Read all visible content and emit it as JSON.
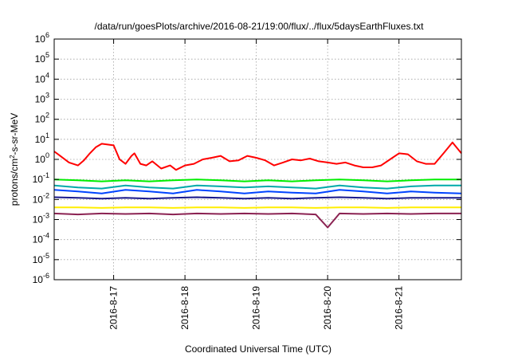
{
  "chart_data": {
    "type": "line",
    "title": "/data/run/goesPlots/archive/2016-08-21/19:00/flux/../flux/5daysEarthFluxes.txt",
    "xlabel": "Coordinated Universal Time (UTC)",
    "ylabel": {
      "before": "protons/cm",
      "superscript": "2",
      "after": "-s-sr-MeV"
    },
    "yscale": "log",
    "ylim": [
      1e-06,
      1000000.0
    ],
    "yticks": [
      {
        "value": 1e-06,
        "base": "10",
        "exp": "-6"
      },
      {
        "value": 1e-05,
        "base": "10",
        "exp": "-5"
      },
      {
        "value": 0.0001,
        "base": "10",
        "exp": "-4"
      },
      {
        "value": 0.001,
        "base": "10",
        "exp": "-3"
      },
      {
        "value": 0.01,
        "base": "10",
        "exp": "-2"
      },
      {
        "value": 0.1,
        "base": "10",
        "exp": "-1"
      },
      {
        "value": 1,
        "base": "10",
        "exp": "0"
      },
      {
        "value": 10,
        "base": "10",
        "exp": "1"
      },
      {
        "value": 100,
        "base": "10",
        "exp": "2"
      },
      {
        "value": 1000,
        "base": "10",
        "exp": "3"
      },
      {
        "value": 10000,
        "base": "10",
        "exp": "4"
      },
      {
        "value": 100000,
        "base": "10",
        "exp": "5"
      },
      {
        "value": 1000000,
        "base": "10",
        "exp": "6"
      }
    ],
    "xlim": [
      "2016-08-16 04:00",
      "2016-08-21 21:00"
    ],
    "xticks": [
      {
        "value": "2016-08-17 00:00",
        "label": "2016-8-17"
      },
      {
        "value": "2016-08-18 00:00",
        "label": "2016-8-18"
      },
      {
        "value": "2016-08-19 00:00",
        "label": "2016-8-19"
      },
      {
        "value": "2016-08-20 00:00",
        "label": "2016-8-20"
      },
      {
        "value": "2016-08-21 00:00",
        "label": "2016-8-21"
      }
    ],
    "grid": true,
    "legend": "none",
    "series": [
      {
        "color": "#ff0000",
        "x": [
          "2016-08-16 04:00",
          "2016-08-16 06:00",
          "2016-08-16 09:00",
          "2016-08-16 12:00",
          "2016-08-16 14:00",
          "2016-08-16 16:00",
          "2016-08-16 18:00",
          "2016-08-16 20:00",
          "2016-08-16 22:00",
          "2016-08-17 00:00",
          "2016-08-17 02:00",
          "2016-08-17 04:00",
          "2016-08-17 06:00",
          "2016-08-17 07:00",
          "2016-08-17 09:00",
          "2016-08-17 11:00",
          "2016-08-17 13:00",
          "2016-08-17 16:00",
          "2016-08-17 19:00",
          "2016-08-17 21:00",
          "2016-08-18 00:00",
          "2016-08-18 03:00",
          "2016-08-18 06:00",
          "2016-08-18 09:00",
          "2016-08-18 12:00",
          "2016-08-18 15:00",
          "2016-08-18 18:00",
          "2016-08-18 21:00",
          "2016-08-19 00:00",
          "2016-08-19 03:00",
          "2016-08-19 06:00",
          "2016-08-19 09:00",
          "2016-08-19 12:00",
          "2016-08-19 15:00",
          "2016-08-19 18:00",
          "2016-08-19 21:00",
          "2016-08-20 00:00",
          "2016-08-20 03:00",
          "2016-08-20 06:00",
          "2016-08-20 09:00",
          "2016-08-20 12:00",
          "2016-08-20 15:00",
          "2016-08-20 18:00",
          "2016-08-20 21:00",
          "2016-08-21 00:00",
          "2016-08-21 03:00",
          "2016-08-21 06:00",
          "2016-08-21 09:00",
          "2016-08-21 12:00",
          "2016-08-21 15:00",
          "2016-08-21 18:00",
          "2016-08-21 21:00"
        ],
        "y": [
          2.5,
          1.5,
          0.7,
          0.5,
          0.9,
          2.0,
          4.0,
          6.0,
          5.5,
          5.0,
          1.0,
          0.6,
          1.5,
          2.0,
          0.6,
          0.5,
          0.8,
          0.35,
          0.5,
          0.3,
          0.5,
          0.6,
          1.0,
          1.2,
          1.5,
          0.8,
          0.9,
          1.5,
          1.2,
          0.9,
          0.5,
          0.7,
          1.0,
          0.9,
          1.1,
          0.8,
          0.7,
          0.6,
          0.7,
          0.5,
          0.4,
          0.4,
          0.5,
          1.0,
          2.0,
          1.8,
          0.8,
          0.6,
          0.6,
          2.0,
          7.0,
          2.0
        ]
      },
      {
        "color": "#00ee00",
        "x": [
          "2016-08-16 04:00",
          "2016-08-16 12:00",
          "2016-08-16 20:00",
          "2016-08-17 04:00",
          "2016-08-17 12:00",
          "2016-08-17 20:00",
          "2016-08-18 04:00",
          "2016-08-18 12:00",
          "2016-08-18 20:00",
          "2016-08-19 04:00",
          "2016-08-19 12:00",
          "2016-08-19 20:00",
          "2016-08-20 04:00",
          "2016-08-20 12:00",
          "2016-08-20 20:00",
          "2016-08-21 04:00",
          "2016-08-21 12:00",
          "2016-08-21 21:00"
        ],
        "y": [
          0.1,
          0.09,
          0.08,
          0.09,
          0.08,
          0.09,
          0.1,
          0.09,
          0.08,
          0.09,
          0.08,
          0.09,
          0.1,
          0.09,
          0.08,
          0.09,
          0.1,
          0.1
        ]
      },
      {
        "color": "#00aaaa",
        "x": [
          "2016-08-16 04:00",
          "2016-08-16 12:00",
          "2016-08-16 20:00",
          "2016-08-17 04:00",
          "2016-08-17 12:00",
          "2016-08-17 20:00",
          "2016-08-18 04:00",
          "2016-08-18 12:00",
          "2016-08-18 20:00",
          "2016-08-19 04:00",
          "2016-08-19 12:00",
          "2016-08-19 20:00",
          "2016-08-20 04:00",
          "2016-08-20 12:00",
          "2016-08-20 20:00",
          "2016-08-21 04:00",
          "2016-08-21 12:00",
          "2016-08-21 21:00"
        ],
        "y": [
          0.05,
          0.04,
          0.035,
          0.05,
          0.04,
          0.035,
          0.05,
          0.045,
          0.04,
          0.045,
          0.04,
          0.035,
          0.05,
          0.04,
          0.035,
          0.045,
          0.05,
          0.05
        ]
      },
      {
        "color": "#0044ff",
        "x": [
          "2016-08-16 04:00",
          "2016-08-16 12:00",
          "2016-08-16 20:00",
          "2016-08-17 04:00",
          "2016-08-17 12:00",
          "2016-08-17 20:00",
          "2016-08-18 04:00",
          "2016-08-18 12:00",
          "2016-08-18 20:00",
          "2016-08-19 04:00",
          "2016-08-19 12:00",
          "2016-08-19 20:00",
          "2016-08-20 04:00",
          "2016-08-20 12:00",
          "2016-08-20 20:00",
          "2016-08-21 04:00",
          "2016-08-21 12:00",
          "2016-08-21 21:00"
        ],
        "y": [
          0.03,
          0.025,
          0.02,
          0.03,
          0.025,
          0.02,
          0.03,
          0.025,
          0.02,
          0.025,
          0.022,
          0.02,
          0.03,
          0.025,
          0.02,
          0.025,
          0.022,
          0.02
        ]
      },
      {
        "color": "#1a1a8c",
        "x": [
          "2016-08-16 04:00",
          "2016-08-16 12:00",
          "2016-08-16 20:00",
          "2016-08-17 04:00",
          "2016-08-17 12:00",
          "2016-08-17 20:00",
          "2016-08-18 04:00",
          "2016-08-18 12:00",
          "2016-08-18 20:00",
          "2016-08-19 04:00",
          "2016-08-19 12:00",
          "2016-08-19 20:00",
          "2016-08-20 04:00",
          "2016-08-20 12:00",
          "2016-08-20 20:00",
          "2016-08-21 04:00",
          "2016-08-21 12:00",
          "2016-08-21 21:00"
        ],
        "y": [
          0.013,
          0.012,
          0.011,
          0.012,
          0.011,
          0.012,
          0.013,
          0.012,
          0.011,
          0.012,
          0.011,
          0.012,
          0.013,
          0.012,
          0.011,
          0.012,
          0.012,
          0.012
        ]
      },
      {
        "color": "#ffee00",
        "x": [
          "2016-08-16 04:00",
          "2016-08-16 12:00",
          "2016-08-16 20:00",
          "2016-08-17 04:00",
          "2016-08-17 12:00",
          "2016-08-17 20:00",
          "2016-08-18 04:00",
          "2016-08-18 12:00",
          "2016-08-18 20:00",
          "2016-08-19 04:00",
          "2016-08-19 12:00",
          "2016-08-19 20:00",
          "2016-08-20 04:00",
          "2016-08-20 12:00",
          "2016-08-20 20:00",
          "2016-08-21 04:00",
          "2016-08-21 12:00",
          "2016-08-21 21:00"
        ],
        "y": [
          0.004,
          0.004,
          0.0038,
          0.004,
          0.004,
          0.0038,
          0.004,
          0.004,
          0.0038,
          0.004,
          0.004,
          0.0038,
          0.004,
          0.004,
          0.0038,
          0.004,
          0.004,
          0.004
        ]
      },
      {
        "color": "#8b2252",
        "x": [
          "2016-08-16 04:00",
          "2016-08-16 12:00",
          "2016-08-16 20:00",
          "2016-08-17 04:00",
          "2016-08-17 12:00",
          "2016-08-17 20:00",
          "2016-08-18 04:00",
          "2016-08-18 12:00",
          "2016-08-18 20:00",
          "2016-08-19 04:00",
          "2016-08-19 12:00",
          "2016-08-19 20:00",
          "2016-08-20 00:00",
          "2016-08-20 04:00",
          "2016-08-20 12:00",
          "2016-08-20 20:00",
          "2016-08-21 04:00",
          "2016-08-21 12:00",
          "2016-08-21 21:00"
        ],
        "y": [
          0.002,
          0.0018,
          0.002,
          0.0019,
          0.002,
          0.0018,
          0.002,
          0.0019,
          0.002,
          0.0019,
          0.002,
          0.0018,
          0.0004,
          0.002,
          0.0019,
          0.002,
          0.0019,
          0.002,
          0.002
        ]
      }
    ]
  }
}
